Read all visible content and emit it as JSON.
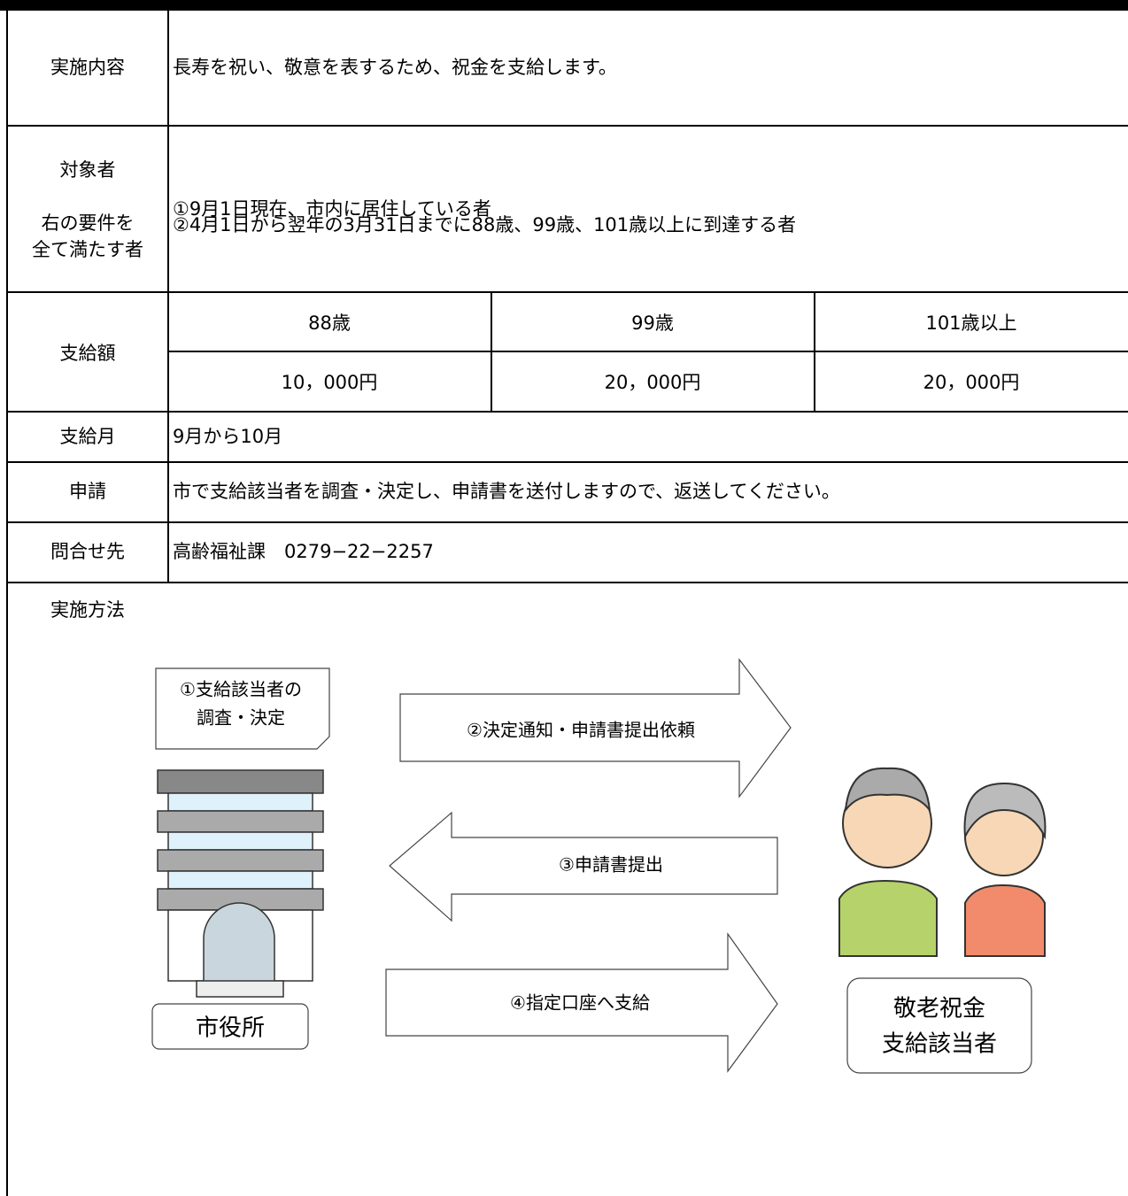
{
  "table": {
    "rows": [
      {
        "label": [
          "実施内容"
        ],
        "content": [
          "長寿を祝い、敬意を表するため、祝金を支給します。"
        ]
      },
      {
        "label": [
          "対象者",
          "右の要件を",
          "全て満たす者"
        ],
        "content": [
          "①9月1日現在、市内に居住している者",
          "②4月1日から翌年の3月31日までに88歳、99歳、101歳以上に到達する者"
        ]
      },
      {
        "label": [
          "支給額"
        ],
        "headers": [
          "88歳",
          "99歳",
          "101歳以上"
        ],
        "amounts": [
          "10，000円",
          "20，000円",
          "20，000円"
        ]
      },
      {
        "label": [
          "支給月"
        ],
        "content": [
          "9月から10月"
        ]
      },
      {
        "label": [
          "申請"
        ],
        "content": [
          "市で支給該当者を調査・決定し、申請書を送付しますので、返送してください。"
        ]
      },
      {
        "label": [
          "問合せ先"
        ],
        "content": [
          "高齢福祉課　0279−22−2257"
        ]
      }
    ]
  },
  "section": {
    "title": "実施方法"
  },
  "diagram": {
    "memo": [
      "①支給該当者の",
      "調査・決定"
    ],
    "arrows": [
      "②決定通知・申請書提出依頼",
      "③申請書提出",
      "④指定口座へ支給"
    ],
    "city_hall": "市役所",
    "recipients": [
      "敬老祝金",
      "支給該当者"
    ]
  }
}
